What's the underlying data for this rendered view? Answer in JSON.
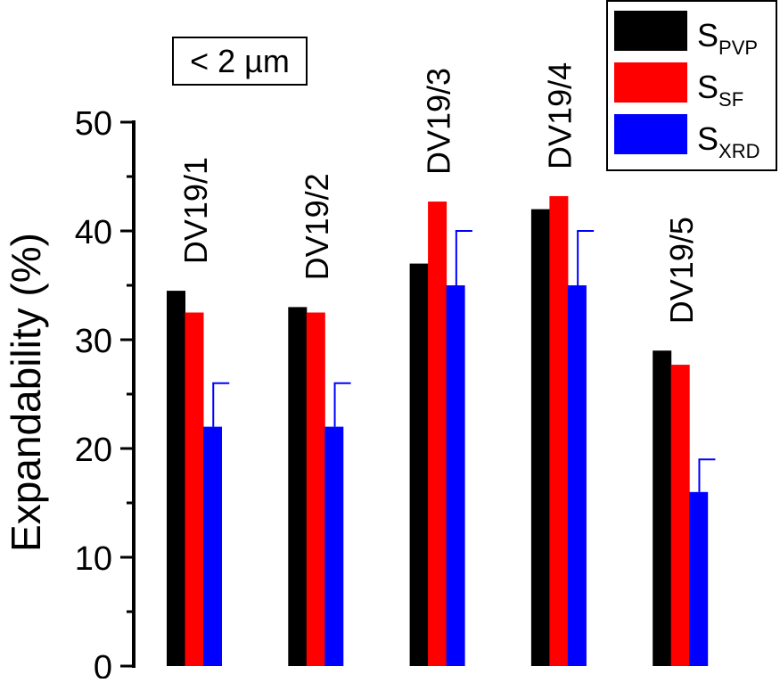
{
  "chart_data": {
    "type": "bar",
    "title": "",
    "annotation": "< 2 µm",
    "xlabel": "",
    "ylabel": "Expandability (%)",
    "ylim": [
      0,
      50
    ],
    "yticks": [
      "0",
      "10",
      "20",
      "30",
      "40",
      "50"
    ],
    "yticks_values": [
      0,
      10,
      20,
      30,
      40,
      50
    ],
    "grid": false,
    "legend_position": "top-right",
    "categories": [
      "DV19/1",
      "DV19/2",
      "DV19/3",
      "DV19/4",
      "DV19/5"
    ],
    "series": [
      {
        "name": "S",
        "sub": "PVP",
        "color": "#000000",
        "values": [
          34.5,
          33,
          37,
          42,
          29
        ]
      },
      {
        "name": "S",
        "sub": "SF",
        "color": "#ff0000",
        "values": [
          32.5,
          32.5,
          42.7,
          43.2,
          27.7
        ]
      },
      {
        "name": "S",
        "sub": "XRD",
        "color": "#0000ff",
        "values": [
          22,
          22,
          35,
          35,
          16
        ],
        "error_plus": [
          4,
          4,
          5,
          5,
          3
        ]
      }
    ]
  }
}
